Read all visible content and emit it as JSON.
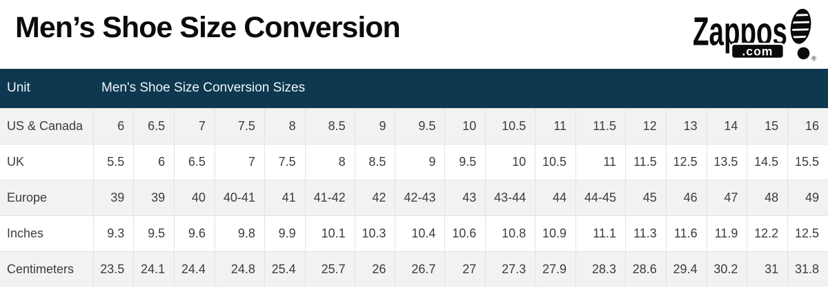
{
  "page": {
    "title": "Men’s Shoe Size Conversion"
  },
  "logo": {
    "brand": "Zappos",
    "domain": ".com",
    "registered": "®"
  },
  "table": {
    "header": {
      "unit": "Unit",
      "sizes": "Men's Shoe Size Conversion Sizes"
    },
    "rows": [
      {
        "label": "US & Canada",
        "values": [
          "6",
          "6.5",
          "7",
          "7.5",
          "8",
          "8.5",
          "9",
          "9.5",
          "10",
          "10.5",
          "11",
          "11.5",
          "12",
          "13",
          "14",
          "15",
          "16"
        ]
      },
      {
        "label": "UK",
        "values": [
          "5.5",
          "6",
          "6.5",
          "7",
          "7.5",
          "8",
          "8.5",
          "9",
          "9.5",
          "10",
          "10.5",
          "11",
          "11.5",
          "12.5",
          "13.5",
          "14.5",
          "15.5"
        ]
      },
      {
        "label": "Europe",
        "values": [
          "39",
          "39",
          "40",
          "40-41",
          "41",
          "41-42",
          "42",
          "42-43",
          "43",
          "43-44",
          "44",
          "44-45",
          "45",
          "46",
          "47",
          "48",
          "49"
        ]
      },
      {
        "label": "Inches",
        "values": [
          "9.3",
          "9.5",
          "9.6",
          "9.8",
          "9.9",
          "10.1",
          "10.3",
          "10.4",
          "10.6",
          "10.8",
          "10.9",
          "11.1",
          "11.3",
          "11.6",
          "11.9",
          "12.2",
          "12.5"
        ]
      },
      {
        "label": "Centimeters",
        "values": [
          "23.5",
          "24.1",
          "24.4",
          "24.8",
          "25.4",
          "25.7",
          "26",
          "26.7",
          "27",
          "27.3",
          "27.9",
          "28.3",
          "28.6",
          "29.4",
          "30.2",
          "31",
          "31.8"
        ]
      }
    ]
  },
  "chart_data": {
    "type": "table",
    "title": "Men's Shoe Size Conversion",
    "header_row": [
      "Unit",
      "Men's Shoe Size Conversion Sizes"
    ],
    "row_labels": [
      "US & Canada",
      "UK",
      "Europe",
      "Inches",
      "Centimeters"
    ],
    "rows": [
      [
        "6",
        "6.5",
        "7",
        "7.5",
        "8",
        "8.5",
        "9",
        "9.5",
        "10",
        "10.5",
        "11",
        "11.5",
        "12",
        "13",
        "14",
        "15",
        "16"
      ],
      [
        "5.5",
        "6",
        "6.5",
        "7",
        "7.5",
        "8",
        "8.5",
        "9",
        "9.5",
        "10",
        "10.5",
        "11",
        "11.5",
        "12.5",
        "13.5",
        "14.5",
        "15.5"
      ],
      [
        "39",
        "39",
        "40",
        "40-41",
        "41",
        "41-42",
        "42",
        "42-43",
        "43",
        "43-44",
        "44",
        "44-45",
        "45",
        "46",
        "47",
        "48",
        "49"
      ],
      [
        "9.3",
        "9.5",
        "9.6",
        "9.8",
        "9.9",
        "10.1",
        "10.3",
        "10.4",
        "10.6",
        "10.8",
        "10.9",
        "11.1",
        "11.3",
        "11.6",
        "11.9",
        "12.2",
        "12.5"
      ],
      [
        "23.5",
        "24.1",
        "24.4",
        "24.8",
        "25.4",
        "25.7",
        "26",
        "26.7",
        "27",
        "27.3",
        "27.9",
        "28.3",
        "28.6",
        "29.4",
        "30.2",
        "31",
        "31.8"
      ]
    ],
    "layout_hints": {
      "alternating_row_shading": true,
      "header_style": "dark navy band, white text",
      "value_alignment": "right"
    }
  },
  "colors": {
    "page_bg": "#ffffff",
    "header_bg": "#0d3850",
    "header_text": "#f0f5f8",
    "row_alt_bg": "#f2f2f2",
    "row_bg": "#ffffff",
    "border_color": "#e2e2e2",
    "cell_text": "#3c3c3c",
    "title_text": "#0b0b0b",
    "logo_color": "#0a0a0a"
  }
}
